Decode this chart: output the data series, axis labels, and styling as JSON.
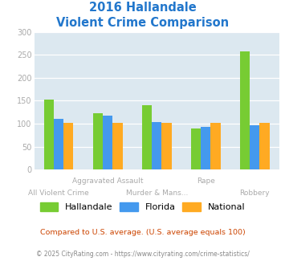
{
  "title_line1": "2016 Hallandale",
  "title_line2": "Violent Crime Comparison",
  "categories": [
    "All Violent Crime",
    "Aggravated Assault",
    "Murder & Mans...",
    "Rape",
    "Robbery"
  ],
  "row1_labels": [
    "",
    "Aggravated Assault",
    "",
    "Rape",
    ""
  ],
  "row2_labels": [
    "All Violent Crime",
    "",
    "Murder & Mans...",
    "",
    "Robbery"
  ],
  "hallandale": [
    153,
    123,
    140,
    89,
    258
  ],
  "florida": [
    110,
    118,
    103,
    93,
    97
  ],
  "national": [
    102,
    101,
    101,
    101,
    101
  ],
  "bar_colors": {
    "hallandale": "#77cc33",
    "florida": "#4499ee",
    "national": "#ffaa22"
  },
  "ylim": [
    0,
    300
  ],
  "yticks": [
    0,
    50,
    100,
    150,
    200,
    250,
    300
  ],
  "legend_labels": [
    "Hallandale",
    "Florida",
    "National"
  ],
  "footnote1": "Compared to U.S. average. (U.S. average equals 100)",
  "footnote2": "© 2025 CityRating.com - https://www.cityrating.com/crime-statistics/",
  "plot_bg": "#dce8f0",
  "title_color": "#2277cc",
  "footnote1_color": "#cc4400",
  "footnote2_color": "#888888",
  "tick_color": "#aaaaaa",
  "label_color": "#aaaaaa"
}
